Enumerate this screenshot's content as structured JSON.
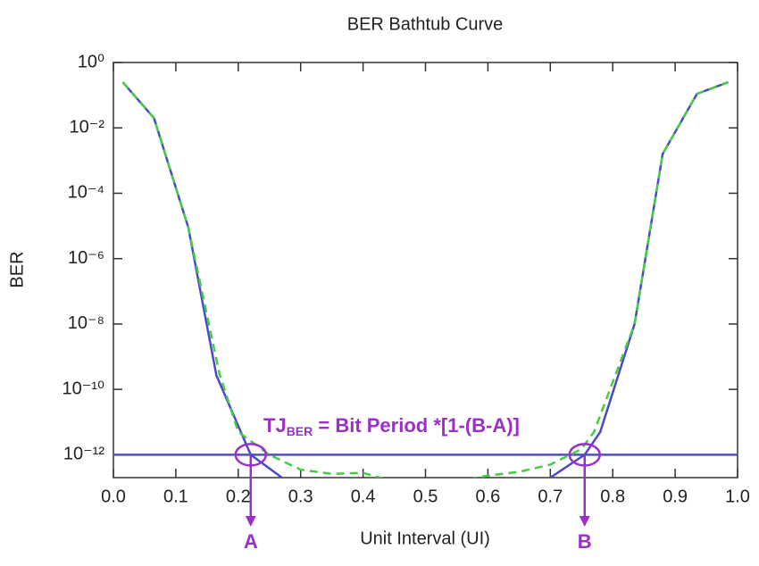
{
  "chart_data": {
    "type": "line",
    "title": "BER Bathtub Curve",
    "xlabel": "Unit Interval (UI)",
    "ylabel": "BER",
    "yscale": "log",
    "xlim": [
      0,
      1
    ],
    "ylim": [
      2e-13,
      1
    ],
    "xticks": [
      {
        "value": 0,
        "label": "0.0"
      },
      0.1,
      0.2,
      0.3,
      0.4,
      0.5,
      0.6,
      0.7,
      0.8,
      0.9,
      {
        "value": 1,
        "label": "1.0"
      }
    ],
    "yticks": [
      {
        "value": 1,
        "label": "10⁰"
      },
      {
        "value": 0.01,
        "label": "10⁻²"
      },
      {
        "value": 0.0001,
        "label": "10⁻⁴"
      },
      {
        "value": 1e-06,
        "label": "10⁻⁶"
      },
      {
        "value": 1e-08,
        "label": "10⁻⁸"
      },
      {
        "value": 1e-10,
        "label": "10⁻¹⁰"
      },
      {
        "value": 1e-12,
        "label": "10⁻¹²"
      }
    ],
    "series": [
      {
        "color": "#4a4ac8",
        "dash": false,
        "x": [
          0.015,
          0.065,
          0.12,
          0.165,
          0.22,
          0.27,
          0.5,
          0.7,
          0.755,
          0.78,
          0.835,
          0.88,
          0.935,
          0.985
        ],
        "values": [
          0.25,
          0.02,
          9e-06,
          2.7e-10,
          1e-12,
          2e-13,
          null,
          2e-13,
          1e-12,
          5e-12,
          1e-08,
          0.0016,
          0.11,
          0.25
        ]
      },
      {
        "color": "#44cc44",
        "dash": true,
        "x": [
          0.015,
          0.065,
          0.12,
          0.17,
          0.2,
          0.25,
          0.3,
          0.35,
          0.4,
          0.45,
          0.55,
          0.6,
          0.65,
          0.7,
          0.75,
          0.77,
          0.835,
          0.88,
          0.935,
          0.985
        ],
        "values": [
          0.25,
          0.02,
          9e-06,
          3e-10,
          5e-12,
          1e-12,
          3.5e-13,
          2.6e-13,
          2.8e-13,
          1.5e-13,
          1.5e-13,
          2.3e-13,
          3e-13,
          5e-13,
          1.5e-12,
          5e-12,
          1e-08,
          0.0016,
          0.11,
          0.25
        ]
      }
    ],
    "hline": 1e-12,
    "annotation": {
      "main": "TJ",
      "sub": "BER",
      "rest": " = Bit Period *[1-(B-A)]"
    },
    "markers": [
      {
        "label": "A",
        "x": 0.22
      },
      {
        "label": "B",
        "x": 0.755
      }
    ],
    "annotation_color": "#9b30c8"
  }
}
